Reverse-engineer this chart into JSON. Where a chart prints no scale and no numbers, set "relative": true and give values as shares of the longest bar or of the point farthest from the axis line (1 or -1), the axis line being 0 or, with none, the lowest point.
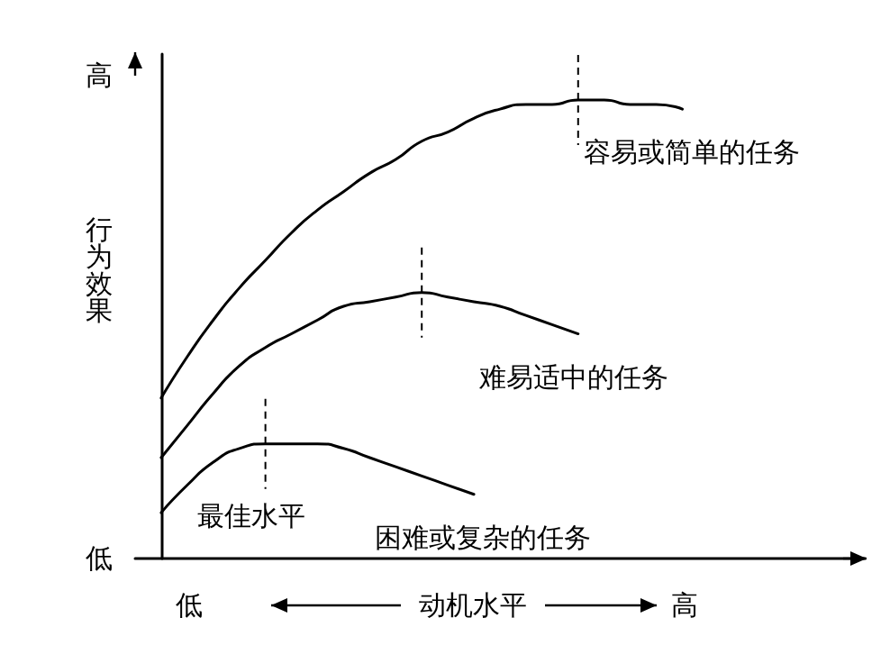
{
  "chart_data": {
    "type": "line",
    "relative": true,
    "xlabel": "动机水平",
    "ylabel": "行为效果",
    "categories": [
      null,
      null,
      null,
      null,
      null,
      null,
      null,
      null,
      null,
      null,
      null,
      null,
      null,
      null,
      null,
      null,
      null,
      null,
      null,
      null,
      null
    ],
    "series": [
      {
        "name": "容易或简单的任务",
        "color": "#000000",
        "values": [
          0.35,
          0.44,
          0.52,
          0.59,
          0.65,
          0.71,
          0.76,
          0.8,
          0.84,
          0.87,
          0.91,
          0.93,
          0.96,
          0.98,
          0.99,
          0.99,
          1,
          1,
          0.99,
          0.99,
          0.98
        ]
      },
      {
        "name": "难易适中的任务",
        "color": "#000000",
        "values": [
          0.22,
          0.29,
          0.36,
          0.42,
          0.46,
          0.49,
          0.52,
          0.55,
          0.56,
          0.57,
          0.58,
          0.57,
          0.56,
          0.55,
          0.53,
          0.51,
          0.49,
          null,
          null,
          null,
          null
        ]
      },
      {
        "name": "困难或复杂的任务",
        "color": "#000000",
        "values": [
          0.1,
          0.16,
          0.21,
          0.24,
          0.25,
          0.25,
          0.25,
          0.24,
          0.22,
          0.2,
          0.18,
          0.16,
          0.14,
          null,
          null,
          null,
          null,
          null,
          null,
          null,
          null
        ]
      }
    ],
    "annotations": [
      "高",
      "低",
      "低",
      "高",
      "最佳水平"
    ],
    "marker": "none",
    "line_style": "solid",
    "grid": false,
    "legend": false
  }
}
